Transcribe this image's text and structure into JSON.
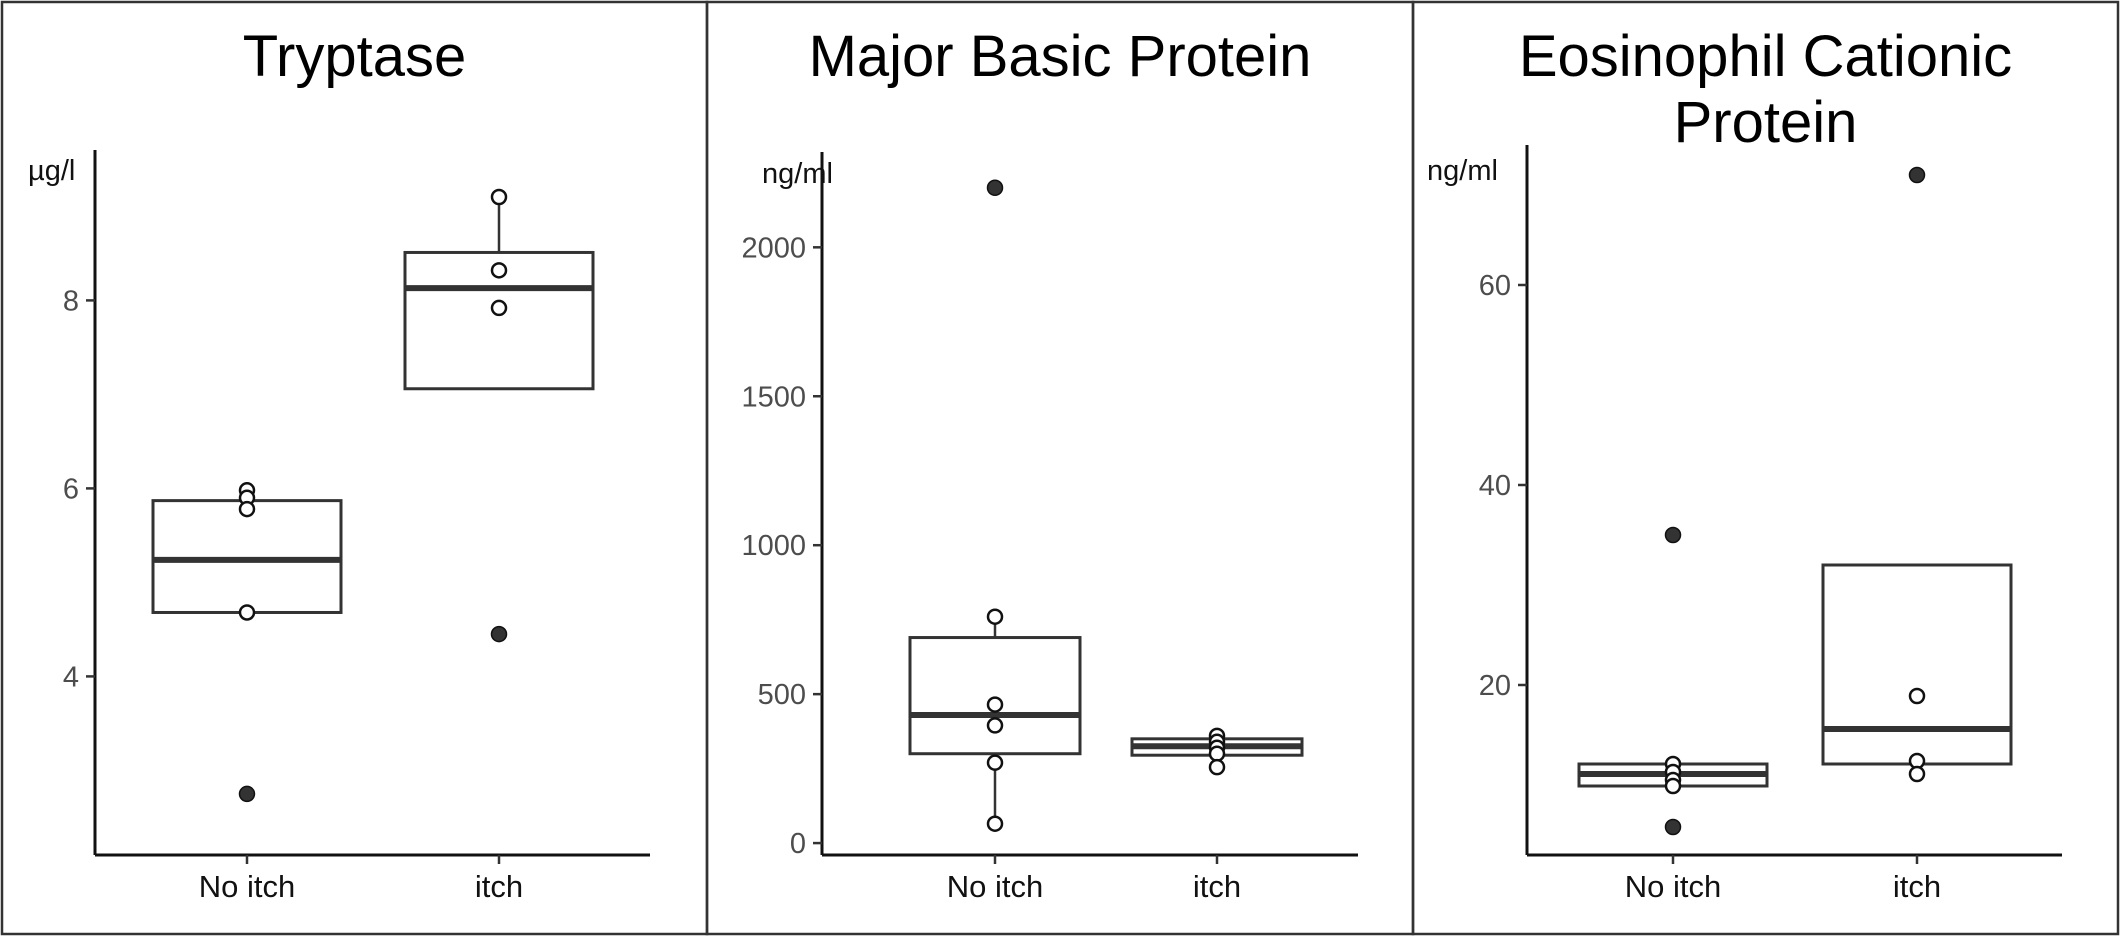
{
  "chart_data": [
    {
      "type": "box",
      "title": "Tryptase",
      "ylabel": "µg/l",
      "xlabel": "",
      "categories": [
        "No itch",
        "itch"
      ],
      "ylim": [
        2.1,
        9.6
      ],
      "yticks": [
        4,
        6,
        8
      ],
      "grid": false,
      "groups": [
        {
          "category": "No itch",
          "q1": 4.68,
          "median": 5.24,
          "q3": 5.87,
          "whisker_low": 4.68,
          "whisker_high": 5.98,
          "points": [
            5.98,
            5.9,
            5.78,
            4.68
          ],
          "outliers": [
            2.75
          ]
        },
        {
          "category": "itch",
          "q1": 7.06,
          "median": 8.13,
          "q3": 8.51,
          "whisker_low": 7.06,
          "whisker_high": 9.1,
          "points": [
            9.1,
            8.32,
            7.92
          ],
          "outliers": [
            4.45
          ]
        }
      ]
    },
    {
      "type": "box",
      "title": "Major Basic Protein",
      "ylabel": "ng/ml",
      "xlabel": "",
      "categories": [
        "No itch",
        "itch"
      ],
      "ylim": [
        -40,
        2320
      ],
      "yticks": [
        0,
        500,
        1000,
        1500,
        2000
      ],
      "grid": false,
      "groups": [
        {
          "category": "No itch",
          "q1": 300,
          "median": 430,
          "q3": 690,
          "whisker_low": 65,
          "whisker_high": 760,
          "points": [
            760,
            465,
            395,
            270,
            65
          ],
          "outliers": [
            2200
          ]
        },
        {
          "category": "itch",
          "q1": 295,
          "median": 325,
          "q3": 350,
          "whisker_low": 255,
          "whisker_high": 360,
          "points": [
            360,
            340,
            320,
            300,
            255
          ],
          "outliers": []
        }
      ]
    },
    {
      "type": "box",
      "title": "Eosinophil Cationic Protein",
      "ylabel": "ng/ml",
      "xlabel": "",
      "categories": [
        "No itch",
        "itch"
      ],
      "ylim": [
        3,
        74
      ],
      "yticks": [
        20,
        40,
        60
      ],
      "grid": false,
      "groups": [
        {
          "category": "No itch",
          "q1": 9.9,
          "median": 11.1,
          "q3": 12.1,
          "whisker_low": 9.9,
          "whisker_high": 12.1,
          "points": [
            12.1,
            11.3,
            10.5,
            9.9
          ],
          "outliers": [
            35.0,
            5.8
          ]
        },
        {
          "category": "itch",
          "q1": 12.1,
          "median": 15.6,
          "q3": 32.0,
          "whisker_low": 12.1,
          "whisker_high": 32.0,
          "points": [
            18.9,
            12.4,
            11.1
          ],
          "outliers": [
            71.0
          ]
        }
      ]
    }
  ]
}
